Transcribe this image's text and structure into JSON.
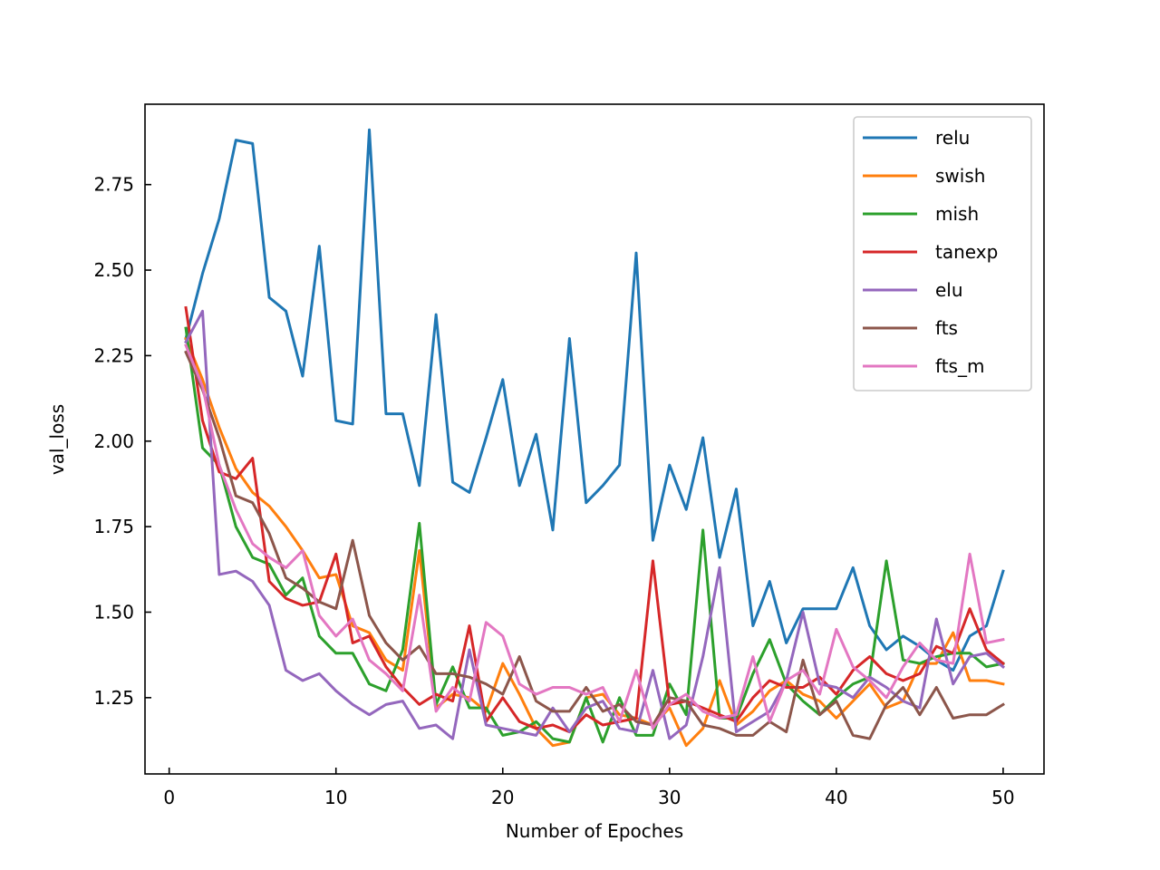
{
  "chart_data": {
    "type": "line",
    "title": "",
    "xlabel": "Number of Epoches",
    "ylabel": "val_loss",
    "xlim": [
      -1.45,
      52.45
    ],
    "ylim": [
      1.027,
      2.985
    ],
    "xticks": [
      0,
      10,
      20,
      30,
      40,
      50
    ],
    "xtick_labels": [
      "0",
      "10",
      "20",
      "30",
      "40",
      "50"
    ],
    "yticks": [
      1.25,
      1.5,
      1.75,
      2.0,
      2.25,
      2.5,
      2.75
    ],
    "ytick_labels": [
      "1.25",
      "1.50",
      "1.75",
      "2.00",
      "2.25",
      "2.50",
      "2.75"
    ],
    "grid": false,
    "legend_position": "top-right",
    "x": [
      1,
      2,
      3,
      4,
      5,
      6,
      7,
      8,
      9,
      10,
      11,
      12,
      13,
      14,
      15,
      16,
      17,
      18,
      19,
      20,
      21,
      22,
      23,
      24,
      25,
      26,
      27,
      28,
      29,
      30,
      31,
      32,
      33,
      34,
      35,
      36,
      37,
      38,
      39,
      40,
      41,
      42,
      43,
      44,
      45,
      46,
      47,
      48,
      49,
      50
    ],
    "series": [
      {
        "name": "relu",
        "color": "#1f77b4",
        "values": [
          2.3,
          2.49,
          2.65,
          2.88,
          2.87,
          2.42,
          2.38,
          2.19,
          2.57,
          2.06,
          2.05,
          2.91,
          2.08,
          2.08,
          1.87,
          2.37,
          1.88,
          1.85,
          2.01,
          2.18,
          1.87,
          2.02,
          1.74,
          2.3,
          1.82,
          1.87,
          1.93,
          2.55,
          1.71,
          1.93,
          1.8,
          2.01,
          1.66,
          1.86,
          1.46,
          1.59,
          1.41,
          1.51,
          1.51,
          1.51,
          1.63,
          1.46,
          1.39,
          1.43,
          1.4,
          1.36,
          1.33,
          1.43,
          1.46,
          1.62
        ]
      },
      {
        "name": "swish",
        "color": "#ff7f0e",
        "values": [
          2.3,
          2.18,
          2.04,
          1.92,
          1.85,
          1.81,
          1.75,
          1.68,
          1.6,
          1.61,
          1.46,
          1.44,
          1.36,
          1.33,
          1.68,
          1.22,
          1.26,
          1.25,
          1.21,
          1.35,
          1.26,
          1.16,
          1.11,
          1.12,
          1.25,
          1.26,
          1.2,
          1.19,
          1.17,
          1.22,
          1.11,
          1.16,
          1.3,
          1.17,
          1.21,
          1.27,
          1.3,
          1.26,
          1.24,
          1.19,
          1.24,
          1.29,
          1.22,
          1.24,
          1.35,
          1.35,
          1.44,
          1.3,
          1.3,
          1.29
        ]
      },
      {
        "name": "mish",
        "color": "#2ca02c",
        "values": [
          2.33,
          1.98,
          1.93,
          1.75,
          1.66,
          1.64,
          1.55,
          1.6,
          1.43,
          1.38,
          1.38,
          1.29,
          1.27,
          1.39,
          1.76,
          1.23,
          1.34,
          1.22,
          1.22,
          1.14,
          1.15,
          1.18,
          1.13,
          1.12,
          1.25,
          1.12,
          1.25,
          1.14,
          1.14,
          1.29,
          1.2,
          1.74,
          1.19,
          1.19,
          1.32,
          1.42,
          1.29,
          1.24,
          1.2,
          1.25,
          1.29,
          1.31,
          1.65,
          1.36,
          1.35,
          1.37,
          1.38,
          1.38,
          1.34,
          1.35
        ]
      },
      {
        "name": "tanexp",
        "color": "#d62728",
        "values": [
          2.39,
          2.06,
          1.91,
          1.89,
          1.95,
          1.59,
          1.54,
          1.52,
          1.53,
          1.67,
          1.41,
          1.43,
          1.34,
          1.28,
          1.23,
          1.26,
          1.24,
          1.46,
          1.18,
          1.25,
          1.18,
          1.16,
          1.17,
          1.15,
          1.2,
          1.17,
          1.18,
          1.19,
          1.65,
          1.23,
          1.24,
          1.22,
          1.2,
          1.18,
          1.25,
          1.3,
          1.28,
          1.28,
          1.31,
          1.26,
          1.33,
          1.37,
          1.32,
          1.3,
          1.32,
          1.4,
          1.38,
          1.51,
          1.39,
          1.35
        ]
      },
      {
        "name": "elu",
        "color": "#9467bd",
        "values": [
          2.29,
          2.38,
          1.61,
          1.62,
          1.59,
          1.52,
          1.33,
          1.3,
          1.32,
          1.27,
          1.23,
          1.2,
          1.23,
          1.24,
          1.16,
          1.17,
          1.13,
          1.39,
          1.17,
          1.16,
          1.15,
          1.14,
          1.22,
          1.15,
          1.22,
          1.24,
          1.16,
          1.15,
          1.33,
          1.13,
          1.17,
          1.37,
          1.63,
          1.15,
          1.18,
          1.21,
          1.3,
          1.5,
          1.29,
          1.28,
          1.25,
          1.31,
          1.28,
          1.24,
          1.22,
          1.48,
          1.29,
          1.37,
          1.38,
          1.34
        ]
      },
      {
        "name": "fts",
        "color": "#8c564b",
        "values": [
          2.26,
          2.15,
          2.01,
          1.84,
          1.82,
          1.73,
          1.6,
          1.57,
          1.53,
          1.51,
          1.71,
          1.49,
          1.41,
          1.36,
          1.4,
          1.32,
          1.32,
          1.31,
          1.29,
          1.26,
          1.37,
          1.24,
          1.21,
          1.21,
          1.28,
          1.21,
          1.23,
          1.18,
          1.17,
          1.25,
          1.24,
          1.17,
          1.16,
          1.14,
          1.14,
          1.18,
          1.15,
          1.36,
          1.2,
          1.24,
          1.14,
          1.13,
          1.23,
          1.28,
          1.2,
          1.28,
          1.19,
          1.2,
          1.2,
          1.23
        ]
      },
      {
        "name": "fts_m",
        "color": "#e377c2",
        "values": [
          2.28,
          2.16,
          1.93,
          1.8,
          1.7,
          1.66,
          1.63,
          1.68,
          1.49,
          1.43,
          1.48,
          1.36,
          1.32,
          1.27,
          1.55,
          1.21,
          1.28,
          1.24,
          1.47,
          1.43,
          1.29,
          1.26,
          1.28,
          1.28,
          1.26,
          1.28,
          1.18,
          1.33,
          1.16,
          1.23,
          1.26,
          1.21,
          1.19,
          1.2,
          1.37,
          1.18,
          1.3,
          1.33,
          1.26,
          1.45,
          1.34,
          1.3,
          1.25,
          1.34,
          1.41,
          1.36,
          1.35,
          1.67,
          1.41,
          1.42
        ]
      }
    ]
  }
}
